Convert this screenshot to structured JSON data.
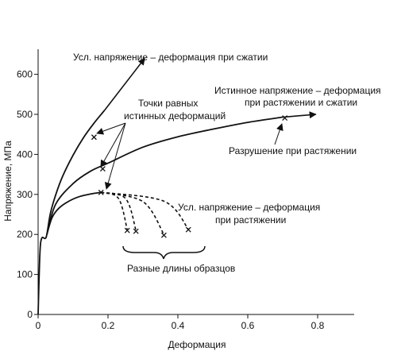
{
  "chart_data": {
    "type": "line",
    "xlabel": "Деформация",
    "ylabel": "Напряжение, МПа",
    "xlim": [
      0,
      0.9
    ],
    "ylim": [
      0,
      650
    ],
    "x_ticks": [
      0,
      0.2,
      0.4,
      0.6,
      0.8
    ],
    "y_ticks": [
      0,
      100,
      200,
      300,
      400,
      500,
      600
    ],
    "x_tick_labels": [
      "0",
      "0.2",
      "0.4",
      "0.6",
      "0.8"
    ],
    "y_tick_labels": [
      "0",
      "100",
      "200",
      "300",
      "400",
      "500",
      "600"
    ],
    "grid": false,
    "series": [
      {
        "name": "Усл. напряжение – деформация при сжатии",
        "style": "solid",
        "x": [
          0,
          0.005,
          0.01,
          0.02,
          0.025,
          0.035,
          0.05,
          0.07,
          0.1,
          0.13,
          0.16,
          0.19
        ],
        "y": [
          0,
          150,
          190,
          190,
          200,
          252,
          298,
          345,
          398,
          442,
          478,
          510
        ],
        "arrow_to": [
          0.305,
          640
        ]
      },
      {
        "name": "Истинное напряжение – деформация при растяжении и сжатии",
        "style": "solid",
        "x": [
          0.025,
          0.05,
          0.1,
          0.15,
          0.2,
          0.3,
          0.4,
          0.5,
          0.6,
          0.7
        ],
        "y": [
          200,
          275,
          327,
          358,
          378,
          418,
          444,
          463,
          480,
          493
        ],
        "arrow_to": [
          0.795,
          500
        ]
      },
      {
        "name": "Усл. напряжение – деформация при растяжении",
        "style": "solid",
        "x": [
          0.025,
          0.04,
          0.06,
          0.09,
          0.12,
          0.15,
          0.18
        ],
        "y": [
          200,
          242,
          266,
          284,
          295,
          301,
          305
        ]
      },
      {
        "name": "",
        "style": "dashed",
        "x": [
          0.18,
          0.23,
          0.255
        ],
        "y": [
          305,
          290,
          212
        ]
      },
      {
        "name": "",
        "style": "dashed",
        "x": [
          0.18,
          0.25,
          0.28
        ],
        "y": [
          305,
          290,
          210
        ]
      },
      {
        "name": "",
        "style": "dashed",
        "x": [
          0.18,
          0.3,
          0.36
        ],
        "y": [
          305,
          282,
          200
        ]
      },
      {
        "name": "",
        "style": "dashed",
        "x": [
          0.18,
          0.36,
          0.43
        ],
        "y": [
          305,
          283,
          213
        ]
      }
    ],
    "markers": [
      {
        "x": 0.16,
        "y": 443
      },
      {
        "x": 0.185,
        "y": 364
      },
      {
        "x": 0.18,
        "y": 305
      },
      {
        "x": 0.255,
        "y": 210
      },
      {
        "x": 0.28,
        "y": 208
      },
      {
        "x": 0.36,
        "y": 198
      },
      {
        "x": 0.43,
        "y": 212
      },
      {
        "x": 0.706,
        "y": 491
      }
    ],
    "annotations": {
      "compression": "Усл. напряжение – деформация при сжатии",
      "true_stress": [
        "Истинное напряжение – деформация",
        "при растяжении и сжатии"
      ],
      "equal_strain": [
        "Точки равных",
        "истинных деформаций"
      ],
      "fracture": "Разрушение при растяжении",
      "tension": [
        "Усл. напряжение – деформация",
        "при растяжении"
      ],
      "lengths": "Разные длины образцов"
    }
  }
}
